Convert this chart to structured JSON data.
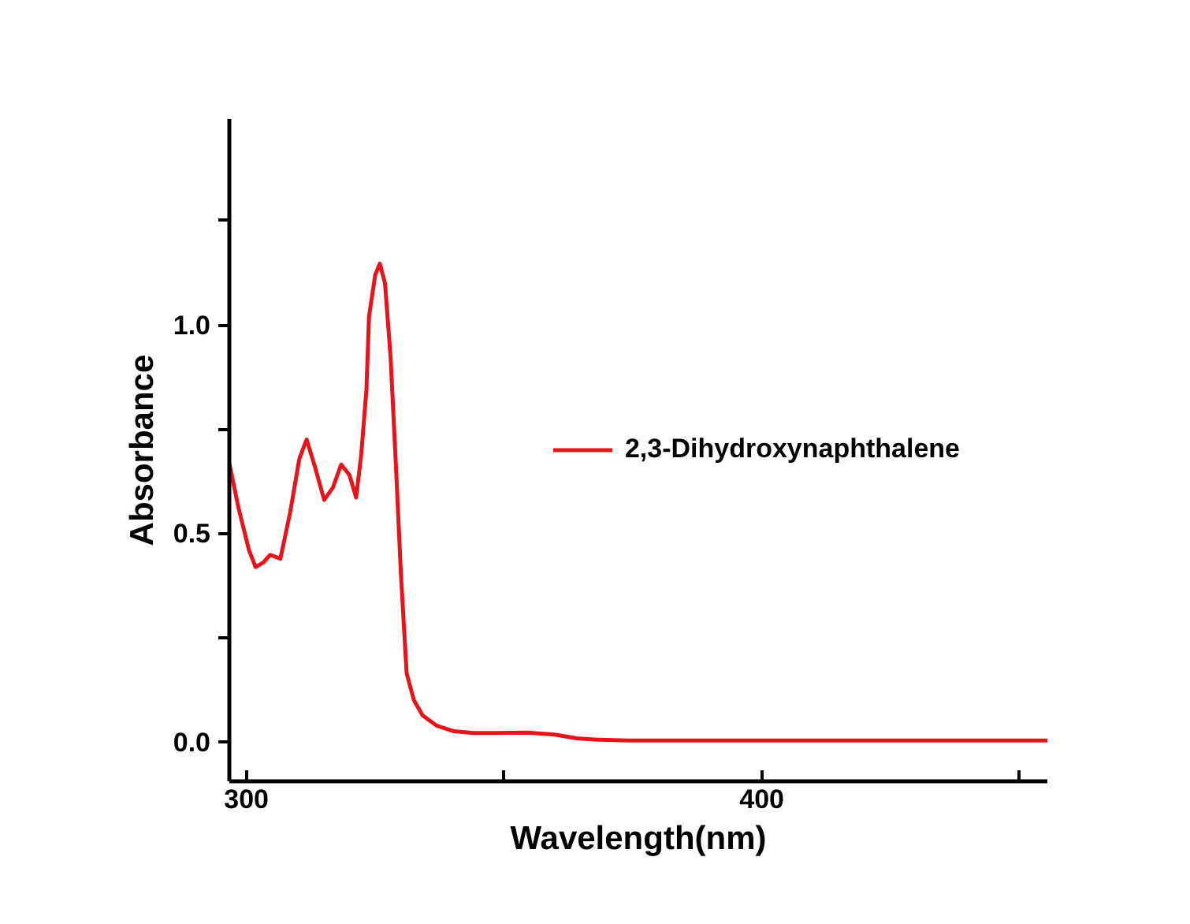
{
  "chart_data": {
    "type": "line",
    "xlabel": "Wavelength(nm)",
    "ylabel": "Absorbance",
    "xlim": [
      296.7,
      455.4
    ],
    "ylim": [
      -0.095,
      1.494
    ],
    "xticks": [
      300,
      {
        "value": 350,
        "label": null
      },
      400,
      {
        "value": 450,
        "label": null
      }
    ],
    "yticks": [
      {
        "value": 0,
        "label": "0.0"
      },
      {
        "value": 0.25,
        "label": null
      },
      0.5,
      {
        "value": 0.75,
        "label": null
      },
      {
        "value": 1,
        "label": "1.0"
      },
      {
        "value": 1.25,
        "label": null
      }
    ],
    "grid": false,
    "legend": "right",
    "line_style": "solid",
    "marker": "none",
    "series": [
      {
        "name": "2,3-Dihydroxynaphthalene",
        "color": "#e8141c",
        "x": [
          296.7,
          298.5,
          300.5,
          301.8,
          303.3,
          304.6,
          305.6,
          306.6,
          308.5,
          310.3,
          311.7,
          313.3,
          315.1,
          316.8,
          318.4,
          320.0,
          321.3,
          322.3,
          323.3,
          323.8,
          325.0,
          325.9,
          326.9,
          328.0,
          329.0,
          330.0,
          331.1,
          332.5,
          334.2,
          337.0,
          340.3,
          344.0,
          348.5,
          354.6,
          359.8,
          364.1,
          368.0,
          373.9,
          385.0,
          400.0,
          420.0,
          440.0,
          455.4
        ],
        "values": [
          0.668,
          0.56,
          0.46,
          0.419,
          0.43,
          0.448,
          0.444,
          0.439,
          0.55,
          0.68,
          0.725,
          0.66,
          0.58,
          0.61,
          0.665,
          0.64,
          0.586,
          0.69,
          0.845,
          1.02,
          1.12,
          1.147,
          1.1,
          0.92,
          0.668,
          0.4,
          0.164,
          0.1,
          0.063,
          0.038,
          0.025,
          0.021,
          0.021,
          0.022,
          0.017,
          0.008,
          0.005,
          0.003,
          0.003,
          0.003,
          0.003,
          0.003,
          0.003
        ]
      }
    ]
  }
}
